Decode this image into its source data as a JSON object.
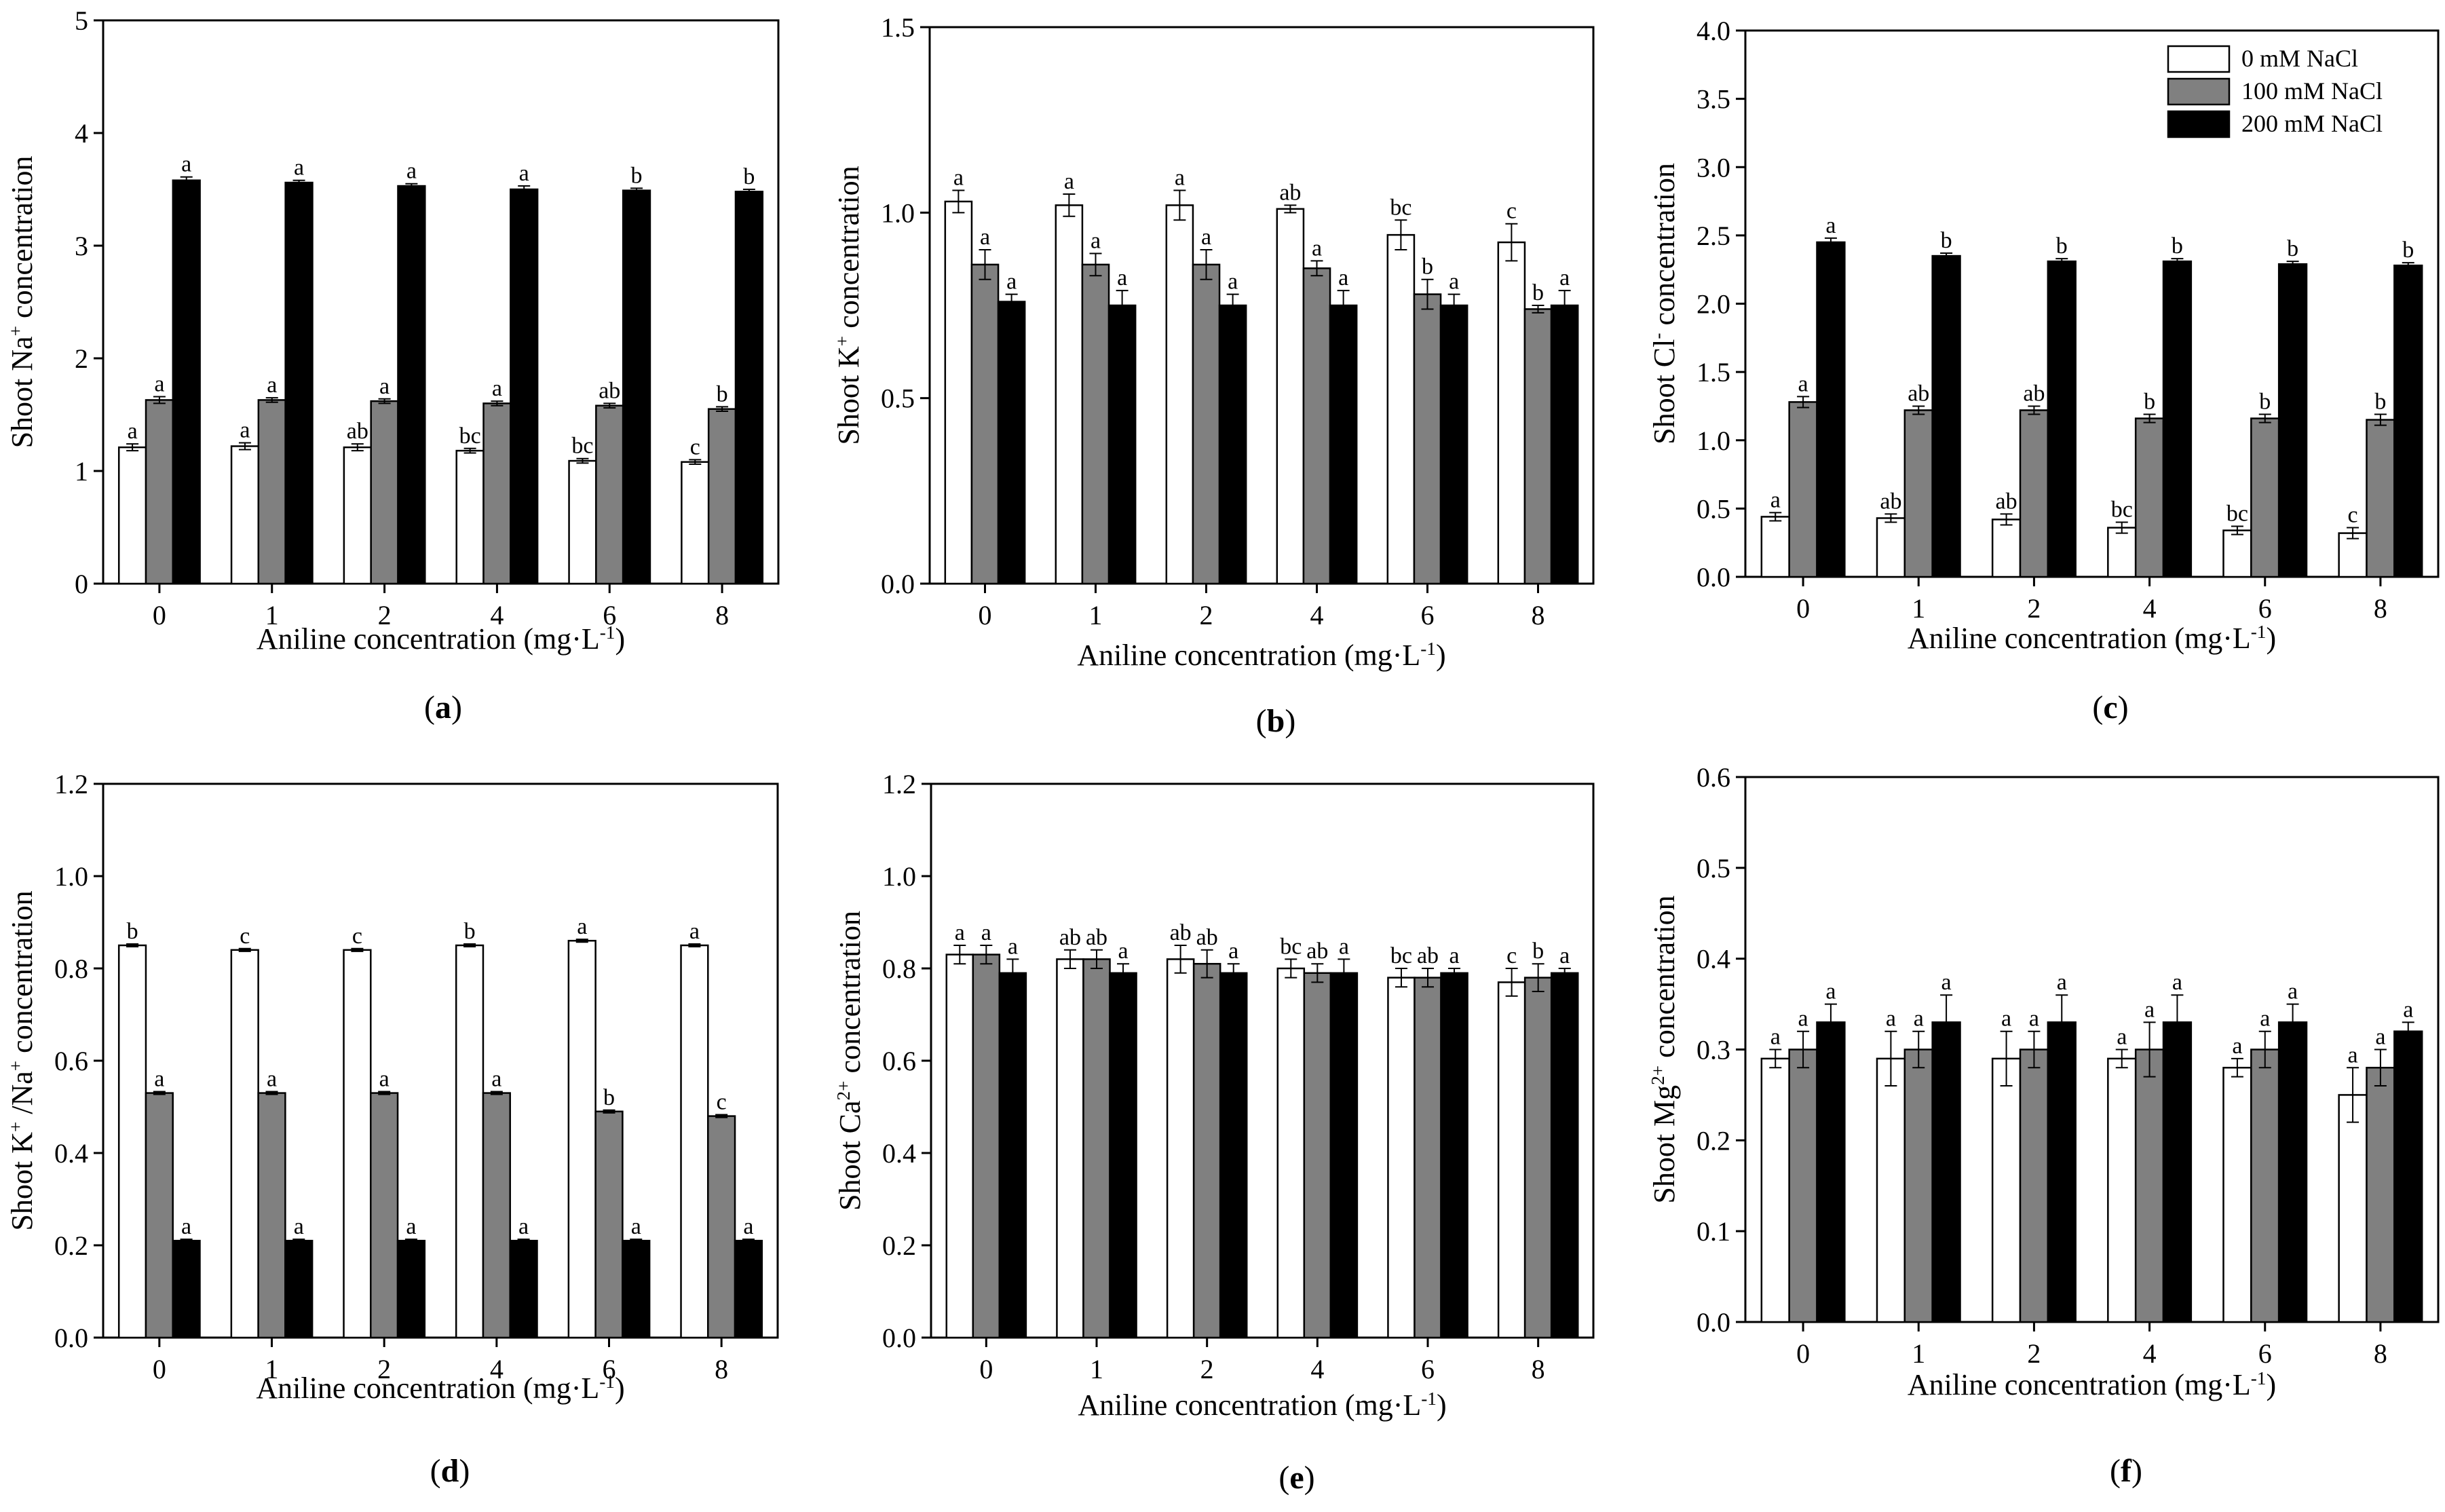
{
  "xlabel_pre": "Aniline concentration (mg·L",
  "xlabel_sup": "-1",
  "xlabel_post": ")",
  "colors": {
    "s0": "#ffffff",
    "s1": "#808080",
    "s2": "#000000"
  },
  "chart_data": [
    {
      "id": "a",
      "type": "bar",
      "panel_label": "a",
      "categories": [
        "0",
        "1",
        "2",
        "4",
        "6",
        "8"
      ],
      "ylim": [
        0,
        5
      ],
      "yticks": [
        0,
        1,
        2,
        3,
        4,
        5
      ],
      "ytick_labels": [
        "0",
        "1",
        "2",
        "3",
        "4",
        "5"
      ],
      "ylabel": {
        "pre": "Shoot Na",
        "sup": "+",
        "post": " concentration"
      },
      "series": [
        {
          "name": "0 mM NaCl",
          "values": [
            1.21,
            1.22,
            1.21,
            1.18,
            1.09,
            1.08
          ],
          "errors": [
            0.03,
            0.03,
            0.03,
            0.02,
            0.02,
            0.02
          ],
          "letters": [
            "a",
            "a",
            "ab",
            "bc",
            "bc",
            "c"
          ]
        },
        {
          "name": "100 mM NaCl",
          "values": [
            1.63,
            1.63,
            1.62,
            1.6,
            1.58,
            1.55
          ],
          "errors": [
            0.03,
            0.02,
            0.02,
            0.02,
            0.02,
            0.02
          ],
          "letters": [
            "a",
            "a",
            "a",
            "a",
            "ab",
            "b"
          ]
        },
        {
          "name": "200 mM NaCl",
          "values": [
            3.58,
            3.56,
            3.53,
            3.5,
            3.49,
            3.48
          ],
          "errors": [
            0.03,
            0.02,
            0.02,
            0.03,
            0.02,
            0.02
          ],
          "letters": [
            "a",
            "a",
            "a",
            "a",
            "b",
            "b"
          ]
        }
      ]
    },
    {
      "id": "b",
      "type": "bar",
      "panel_label": "b",
      "categories": [
        "0",
        "1",
        "2",
        "4",
        "6",
        "8"
      ],
      "ylim": [
        0,
        1.5
      ],
      "yticks": [
        0,
        0.5,
        1.0,
        1.5
      ],
      "ytick_labels": [
        "0.0",
        "0.5",
        "1.0",
        "1.5"
      ],
      "ylabel": {
        "pre": "Shoot K",
        "sup": "+",
        "post": " concentration"
      },
      "series": [
        {
          "name": "0 mM NaCl",
          "values": [
            1.03,
            1.02,
            1.02,
            1.01,
            0.94,
            0.92
          ],
          "errors": [
            0.03,
            0.03,
            0.04,
            0.01,
            0.04,
            0.05
          ],
          "letters": [
            "a",
            "a",
            "a",
            "ab",
            "bc",
            "c"
          ]
        },
        {
          "name": "100 mM NaCl",
          "values": [
            0.86,
            0.86,
            0.86,
            0.85,
            0.78,
            0.74
          ],
          "errors": [
            0.04,
            0.03,
            0.04,
            0.02,
            0.04,
            0.01
          ],
          "letters": [
            "a",
            "a",
            "a",
            "a",
            "b",
            "b"
          ]
        },
        {
          "name": "200 mM NaCl",
          "values": [
            0.76,
            0.75,
            0.75,
            0.75,
            0.75,
            0.75
          ],
          "errors": [
            0.02,
            0.04,
            0.03,
            0.04,
            0.03,
            0.04
          ],
          "letters": [
            "a",
            "a",
            "a",
            "a",
            "a",
            "a"
          ]
        }
      ]
    },
    {
      "id": "c",
      "type": "bar",
      "panel_label": "c",
      "categories": [
        "0",
        "1",
        "2",
        "4",
        "6",
        "8"
      ],
      "ylim": [
        0,
        4.0
      ],
      "yticks": [
        0,
        0.5,
        1.0,
        1.5,
        2.0,
        2.5,
        3.0,
        3.5,
        4.0
      ],
      "ytick_labels": [
        "0.0",
        "0.5",
        "1.0",
        "1.5",
        "2.0",
        "2.5",
        "3.0",
        "3.5",
        "4.0"
      ],
      "ylabel": {
        "pre": "Shoot Cl",
        "sup": "-",
        "post": " concentration"
      },
      "legend": [
        "0 mM NaCl",
        "100 mM NaCl",
        "200 mM NaCl"
      ],
      "series": [
        {
          "name": "0 mM NaCl",
          "values": [
            0.44,
            0.43,
            0.42,
            0.36,
            0.34,
            0.32
          ],
          "errors": [
            0.03,
            0.03,
            0.04,
            0.04,
            0.03,
            0.04
          ],
          "letters": [
            "a",
            "ab",
            "ab",
            "bc",
            "bc",
            "c"
          ]
        },
        {
          "name": "100 mM NaCl",
          "values": [
            1.28,
            1.22,
            1.22,
            1.16,
            1.16,
            1.15
          ],
          "errors": [
            0.04,
            0.03,
            0.03,
            0.03,
            0.03,
            0.04
          ],
          "letters": [
            "a",
            "ab",
            "ab",
            "b",
            "b",
            "b"
          ]
        },
        {
          "name": "200 mM NaCl",
          "values": [
            2.45,
            2.35,
            2.31,
            2.31,
            2.29,
            2.28
          ],
          "errors": [
            0.03,
            0.02,
            0.02,
            0.02,
            0.02,
            0.02
          ],
          "letters": [
            "a",
            "b",
            "b",
            "b",
            "b",
            "b"
          ]
        }
      ]
    },
    {
      "id": "d",
      "type": "bar",
      "panel_label": "d",
      "categories": [
        "0",
        "1",
        "2",
        "4",
        "6",
        "8"
      ],
      "ylim": [
        0,
        1.2
      ],
      "yticks": [
        0,
        0.2,
        0.4,
        0.6,
        0.8,
        1.0,
        1.2
      ],
      "ytick_labels": [
        "0.0",
        "0.2",
        "0.4",
        "0.6",
        "0.8",
        "1.0",
        "1.2"
      ],
      "ylabel": {
        "pre": "Shoot K",
        "sup": "+",
        "mid": " /Na",
        "sup2": "+",
        "post": " concentration"
      },
      "series": [
        {
          "name": "0 mM NaCl",
          "values": [
            0.85,
            0.84,
            0.84,
            0.85,
            0.86,
            0.85
          ],
          "errors": [
            0.003,
            0.003,
            0.003,
            0.003,
            0.003,
            0.003
          ],
          "letters": [
            "b",
            "c",
            "c",
            "b",
            "a",
            "a"
          ]
        },
        {
          "name": "100 mM NaCl",
          "values": [
            0.53,
            0.53,
            0.53,
            0.53,
            0.49,
            0.48
          ],
          "errors": [
            0.003,
            0.003,
            0.003,
            0.003,
            0.003,
            0.003
          ],
          "letters": [
            "a",
            "a",
            "a",
            "a",
            "b",
            "c"
          ]
        },
        {
          "name": "200 mM NaCl",
          "values": [
            0.21,
            0.21,
            0.21,
            0.21,
            0.21,
            0.21
          ],
          "errors": [
            0.003,
            0.003,
            0.003,
            0.003,
            0.003,
            0.003
          ],
          "letters": [
            "a",
            "a",
            "a",
            "a",
            "a",
            "a"
          ]
        }
      ]
    },
    {
      "id": "e",
      "type": "bar",
      "panel_label": "e",
      "categories": [
        "0",
        "1",
        "2",
        "4",
        "6",
        "8"
      ],
      "ylim": [
        0,
        1.2
      ],
      "yticks": [
        0,
        0.2,
        0.4,
        0.6,
        0.8,
        1.0,
        1.2
      ],
      "ytick_labels": [
        "0.0",
        "0.2",
        "0.4",
        "0.6",
        "0.8",
        "1.0",
        "1.2"
      ],
      "ylabel": {
        "pre": "Shoot Ca",
        "sup": "2+",
        "post": " concentration"
      },
      "series": [
        {
          "name": "0 mM NaCl",
          "values": [
            0.83,
            0.82,
            0.82,
            0.8,
            0.78,
            0.77
          ],
          "errors": [
            0.02,
            0.02,
            0.03,
            0.02,
            0.02,
            0.03
          ],
          "letters": [
            "a",
            "ab",
            "ab",
            "bc",
            "bc",
            "c"
          ]
        },
        {
          "name": "100 mM NaCl",
          "values": [
            0.83,
            0.82,
            0.81,
            0.79,
            0.78,
            0.78
          ],
          "errors": [
            0.02,
            0.02,
            0.03,
            0.02,
            0.02,
            0.03
          ],
          "letters": [
            "a",
            "ab",
            "ab",
            "ab",
            "ab",
            "b"
          ]
        },
        {
          "name": "200 mM NaCl",
          "values": [
            0.79,
            0.79,
            0.79,
            0.79,
            0.79,
            0.79
          ],
          "errors": [
            0.03,
            0.02,
            0.02,
            0.03,
            0.01,
            0.01
          ],
          "letters": [
            "a",
            "a",
            "a",
            "a",
            "a",
            "a"
          ]
        }
      ]
    },
    {
      "id": "f",
      "type": "bar",
      "panel_label": "f",
      "categories": [
        "0",
        "1",
        "2",
        "4",
        "6",
        "8"
      ],
      "ylim": [
        0,
        0.6
      ],
      "yticks": [
        0,
        0.1,
        0.2,
        0.3,
        0.4,
        0.5,
        0.6
      ],
      "ytick_labels": [
        "0.0",
        "0.1",
        "0.2",
        "0.3",
        "0.4",
        "0.5",
        "0.6"
      ],
      "ylabel": {
        "pre": "Shoot Mg",
        "sup": "2+",
        "post": " concentration"
      },
      "series": [
        {
          "name": "0 mM NaCl",
          "values": [
            0.29,
            0.29,
            0.29,
            0.29,
            0.28,
            0.25
          ],
          "errors": [
            0.01,
            0.03,
            0.03,
            0.01,
            0.01,
            0.03
          ],
          "letters": [
            "a",
            "a",
            "a",
            "a",
            "a",
            "a"
          ]
        },
        {
          "name": "100 mM NaCl",
          "values": [
            0.3,
            0.3,
            0.3,
            0.3,
            0.3,
            0.28
          ],
          "errors": [
            0.02,
            0.02,
            0.02,
            0.03,
            0.02,
            0.02
          ],
          "letters": [
            "a",
            "a",
            "a",
            "a",
            "a",
            "a"
          ]
        },
        {
          "name": "200 mM NaCl",
          "values": [
            0.33,
            0.33,
            0.33,
            0.33,
            0.33,
            0.32
          ],
          "errors": [
            0.02,
            0.03,
            0.03,
            0.03,
            0.02,
            0.01
          ],
          "letters": [
            "a",
            "a",
            "a",
            "a",
            "a",
            "a"
          ]
        }
      ]
    }
  ]
}
